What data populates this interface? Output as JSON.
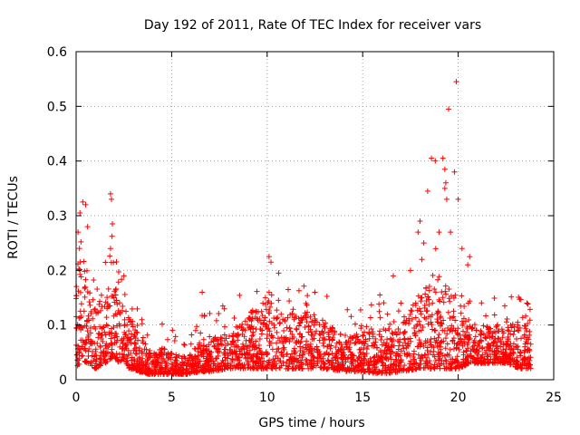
{
  "chart_data": {
    "type": "scatter",
    "title": "Day 192 of 2011, Rate Of TEC Index for receiver vars",
    "xlabel": "GPS time / hours",
    "ylabel": "ROTI / TECUs",
    "xlim": [
      0,
      25
    ],
    "ylim": [
      0,
      0.6
    ],
    "xticks": [
      0,
      5,
      10,
      15,
      20,
      25
    ],
    "yticks": [
      0,
      0.1,
      0.2,
      0.3,
      0.4,
      0.5,
      0.6
    ],
    "xtick_labels": [
      "0",
      "5",
      "10",
      "15",
      "20",
      "25"
    ],
    "ytick_labels": [
      "0",
      "0.1",
      "0.2",
      "0.3",
      "0.4",
      "0.5",
      "0.6"
    ],
    "grid": true,
    "marker": "+",
    "series_color": "#ff0000",
    "x_range_hours": [
      0,
      23.8
    ],
    "envelope": [
      {
        "x": 0.0,
        "base": 0.02,
        "peak": 0.18
      },
      {
        "x": 0.3,
        "base": 0.03,
        "peak": 0.24
      },
      {
        "x": 0.7,
        "base": 0.03,
        "peak": 0.16
      },
      {
        "x": 1.0,
        "base": 0.02,
        "peak": 0.14
      },
      {
        "x": 1.5,
        "base": 0.03,
        "peak": 0.17
      },
      {
        "x": 1.9,
        "base": 0.04,
        "peak": 0.22
      },
      {
        "x": 2.3,
        "base": 0.03,
        "peak": 0.15
      },
      {
        "x": 2.8,
        "base": 0.02,
        "peak": 0.11
      },
      {
        "x": 3.2,
        "base": 0.015,
        "peak": 0.09
      },
      {
        "x": 3.8,
        "base": 0.01,
        "peak": 0.05
      },
      {
        "x": 4.5,
        "base": 0.01,
        "peak": 0.06
      },
      {
        "x": 5.0,
        "base": 0.01,
        "peak": 0.05
      },
      {
        "x": 5.8,
        "base": 0.01,
        "peak": 0.04
      },
      {
        "x": 6.5,
        "base": 0.015,
        "peak": 0.07
      },
      {
        "x": 7.0,
        "base": 0.015,
        "peak": 0.08
      },
      {
        "x": 8.0,
        "base": 0.02,
        "peak": 0.09
      },
      {
        "x": 9.0,
        "base": 0.02,
        "peak": 0.12
      },
      {
        "x": 10.0,
        "base": 0.02,
        "peak": 0.15
      },
      {
        "x": 11.0,
        "base": 0.02,
        "peak": 0.12
      },
      {
        "x": 12.0,
        "base": 0.02,
        "peak": 0.13
      },
      {
        "x": 13.0,
        "base": 0.02,
        "peak": 0.11
      },
      {
        "x": 14.0,
        "base": 0.015,
        "peak": 0.08
      },
      {
        "x": 15.0,
        "base": 0.015,
        "peak": 0.1
      },
      {
        "x": 16.0,
        "base": 0.01,
        "peak": 0.09
      },
      {
        "x": 17.0,
        "base": 0.015,
        "peak": 0.1
      },
      {
        "x": 18.0,
        "base": 0.02,
        "peak": 0.16
      },
      {
        "x": 18.8,
        "base": 0.02,
        "peak": 0.2
      },
      {
        "x": 19.5,
        "base": 0.02,
        "peak": 0.17
      },
      {
        "x": 20.0,
        "base": 0.02,
        "peak": 0.12
      },
      {
        "x": 20.6,
        "base": 0.03,
        "peak": 0.11
      },
      {
        "x": 21.5,
        "base": 0.03,
        "peak": 0.1
      },
      {
        "x": 22.5,
        "base": 0.03,
        "peak": 0.1
      },
      {
        "x": 23.2,
        "base": 0.02,
        "peak": 0.11
      },
      {
        "x": 23.8,
        "base": 0.02,
        "peak": 0.09
      }
    ],
    "notable_points": [
      [
        0.2,
        0.305
      ],
      [
        0.35,
        0.325
      ],
      [
        0.5,
        0.32
      ],
      [
        0.1,
        0.27
      ],
      [
        0.6,
        0.28
      ],
      [
        1.8,
        0.34
      ],
      [
        1.85,
        0.33
      ],
      [
        1.9,
        0.285
      ],
      [
        1.8,
        0.24
      ],
      [
        2.5,
        0.19
      ],
      [
        6.6,
        0.16
      ],
      [
        10.1,
        0.225
      ],
      [
        10.2,
        0.215
      ],
      [
        10.6,
        0.195
      ],
      [
        11.1,
        0.165
      ],
      [
        12.5,
        0.16
      ],
      [
        15.9,
        0.155
      ],
      [
        16.6,
        0.19
      ],
      [
        18.4,
        0.345
      ],
      [
        18.6,
        0.405
      ],
      [
        18.8,
        0.4
      ],
      [
        19.2,
        0.405
      ],
      [
        19.3,
        0.385
      ],
      [
        19.35,
        0.36
      ],
      [
        19.3,
        0.35
      ],
      [
        19.4,
        0.33
      ],
      [
        19.5,
        0.495
      ],
      [
        19.9,
        0.545
      ],
      [
        19.8,
        0.38
      ],
      [
        18.0,
        0.29
      ],
      [
        17.9,
        0.27
      ],
      [
        18.2,
        0.25
      ],
      [
        19.0,
        0.27
      ],
      [
        19.6,
        0.27
      ],
      [
        20.0,
        0.33
      ],
      [
        20.2,
        0.24
      ],
      [
        20.6,
        0.225
      ],
      [
        20.5,
        0.21
      ],
      [
        17.5,
        0.2
      ],
      [
        18.1,
        0.22
      ],
      [
        16.3,
        0.12
      ],
      [
        17.0,
        0.14
      ],
      [
        23.6,
        0.14
      ]
    ]
  }
}
